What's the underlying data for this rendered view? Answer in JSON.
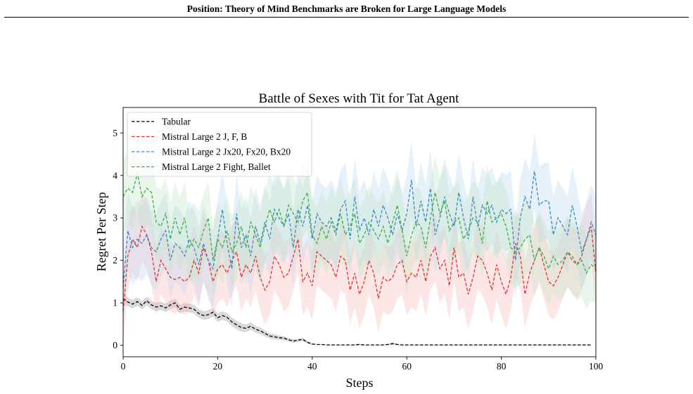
{
  "header": {
    "title": "Position: Theory of Mind Benchmarks are Broken for Large Language Models"
  },
  "chart_data": {
    "type": "line",
    "title": "Battle of Sexes with Tit for Tat Agent",
    "xlabel": "Steps",
    "ylabel": "Regret Per Step",
    "xlim": [
      0,
      100
    ],
    "ylim": [
      -0.27,
      5.6
    ],
    "xticks": [
      0,
      20,
      40,
      60,
      80,
      100
    ],
    "yticks": [
      0,
      1,
      2,
      3,
      4,
      5
    ],
    "grid": false,
    "legend_position": "top-left",
    "series": [
      {
        "name": "Tabular",
        "color": "#000000",
        "band_color": "#808080",
        "values": [
          1.1,
          1.02,
          0.97,
          1.03,
          0.94,
          1.05,
          0.95,
          0.9,
          0.93,
          0.88,
          0.95,
          1.0,
          0.85,
          0.9,
          0.88,
          0.85,
          0.75,
          0.7,
          0.72,
          0.78,
          0.65,
          0.7,
          0.66,
          0.55,
          0.48,
          0.42,
          0.4,
          0.45,
          0.38,
          0.34,
          0.28,
          0.22,
          0.2,
          0.18,
          0.17,
          0.13,
          0.1,
          0.12,
          0.14,
          0.07,
          0.03,
          0.02,
          0.02,
          0.01,
          0.01,
          0.01,
          0.01,
          0.01,
          0.01,
          0.01,
          0.02,
          0.01,
          0.01,
          0.01,
          0.01,
          0.01,
          0.02,
          0.04,
          0.02,
          0.01,
          0.01,
          0.01,
          0.01,
          0.01,
          0.01,
          0.01,
          0.01,
          0.01,
          0.01,
          0.01,
          0.01,
          0.01,
          0.01,
          0.01,
          0.01,
          0.01,
          0.01,
          0.01,
          0.01,
          0.01,
          0.01,
          0.01,
          0.01,
          0.01,
          0.01,
          0.01,
          0.01,
          0.01,
          0.01,
          0.01,
          0.01,
          0.01,
          0.01,
          0.01,
          0.01,
          0.01,
          0.01,
          0.01,
          0.01,
          0.01
        ],
        "band": [
          0.1,
          0.1,
          0.1,
          0.1,
          0.1,
          0.1,
          0.1,
          0.1,
          0.1,
          0.1,
          0.1,
          0.1,
          0.1,
          0.1,
          0.1,
          0.1,
          0.1,
          0.1,
          0.1,
          0.1,
          0.1,
          0.1,
          0.1,
          0.1,
          0.1,
          0.1,
          0.09,
          0.09,
          0.08,
          0.08,
          0.07,
          0.06,
          0.06,
          0.05,
          0.05,
          0.04,
          0.04,
          0.04,
          0.04,
          0.03,
          0.02,
          0.01,
          0.01,
          0.01,
          0.01,
          0.01,
          0.01,
          0.01,
          0.01,
          0.01,
          0.02,
          0.01,
          0.01,
          0.01,
          0.01,
          0.01,
          0.02,
          0.03,
          0.02,
          0.01,
          0.01,
          0.01,
          0.01,
          0.01,
          0.01,
          0.01,
          0.01,
          0.01,
          0.01,
          0.01,
          0.01,
          0.01,
          0.01,
          0.01,
          0.01,
          0.01,
          0.01,
          0.01,
          0.01,
          0.01,
          0.01,
          0.01,
          0.01,
          0.01,
          0.01,
          0.01,
          0.01,
          0.01,
          0.01,
          0.01,
          0.01,
          0.01,
          0.01,
          0.01,
          0.01,
          0.01,
          0.01,
          0.01,
          0.01,
          0.01
        ]
      },
      {
        "name": "Mistral Large 2 J, F, B",
        "color": "#e8312e",
        "band_color": "#f7b0b0",
        "band_width": 0.8,
        "values": [
          0.8,
          2.1,
          2.5,
          2.3,
          2.8,
          2.6,
          2.2,
          1.5,
          2.0,
          1.8,
          1.6,
          1.55,
          1.6,
          1.5,
          1.6,
          2.0,
          1.7,
          2.3,
          2.0,
          1.5,
          1.8,
          1.9,
          1.7,
          2.0,
          2.2,
          1.6,
          1.9,
          1.7,
          2.1,
          1.6,
          1.3,
          1.5,
          2.1,
          1.9,
          1.6,
          1.7,
          2.1,
          2.5,
          1.5,
          1.7,
          1.4,
          2.2,
          2.1,
          2.0,
          1.9,
          1.6,
          2.1,
          2.0,
          1.3,
          1.7,
          1.2,
          1.5,
          2.0,
          1.7,
          1.1,
          1.6,
          1.5,
          1.6,
          1.9,
          2.0,
          1.5,
          1.7,
          1.6,
          2.0,
          1.5,
          2.1,
          2.3,
          1.8,
          2.0,
          1.4,
          2.3,
          1.6,
          1.7,
          1.2,
          1.6,
          2.1,
          2.0,
          1.7,
          1.3,
          1.9,
          1.5,
          1.2,
          1.6,
          2.4,
          2.1,
          1.2,
          1.7,
          2.0,
          2.3,
          1.9,
          1.5,
          1.4,
          1.6,
          1.9,
          2.2,
          2.0,
          1.9,
          2.1,
          2.5,
          2.8,
          1.7
        ],
        "band": []
      },
      {
        "name": "Mistral Large 2 Jx20, Fx20, Bx20",
        "color": "#3b8bc6",
        "band_color": "#b3d4ee",
        "band_width": 0.9,
        "values": [
          1.35,
          2.7,
          2.3,
          2.5,
          2.4,
          2.6,
          2.3,
          2.2,
          2.5,
          2.7,
          2.0,
          2.4,
          2.3,
          2.1,
          2.5,
          2.3,
          1.9,
          2.4,
          2.0,
          1.8,
          2.5,
          3.2,
          2.4,
          1.8,
          3.1,
          2.3,
          2.6,
          2.1,
          2.8,
          2.4,
          2.9,
          2.5,
          3.2,
          3.0,
          2.8,
          3.1,
          2.3,
          3.2,
          2.8,
          3.3,
          2.5,
          3.1,
          2.9,
          2.8,
          3.0,
          2.7,
          3.2,
          3.4,
          2.5,
          3.5,
          2.7,
          3.0,
          2.6,
          3.2,
          2.8,
          3.3,
          3.0,
          2.6,
          3.1,
          2.7,
          3.1,
          3.9,
          2.8,
          3.4,
          2.9,
          3.7,
          2.6,
          3.0,
          3.5,
          3.1,
          2.8,
          3.6,
          3.0,
          2.5,
          3.5,
          2.8,
          3.3,
          3.1,
          3.3,
          2.9,
          3.2,
          3.1,
          3.2,
          2.0,
          3.0,
          3.5,
          3.2,
          4.1,
          3.3,
          3.4,
          3.4,
          2.6,
          3.0,
          2.8,
          2.6,
          3.3,
          2.8,
          2.2,
          2.5,
          2.9,
          2.6
        ],
        "band": []
      },
      {
        "name": "Mistral Large 2 Fight, Ballet",
        "color": "#3fae49",
        "band_color": "#bfe3c2",
        "band_width": 0.85,
        "values": [
          3.5,
          3.7,
          3.6,
          4.05,
          3.5,
          3.7,
          3.6,
          2.9,
          2.8,
          3.1,
          2.5,
          3.0,
          2.6,
          3.0,
          2.3,
          2.5,
          2.3,
          2.7,
          3.0,
          2.0,
          2.5,
          2.3,
          2.7,
          2.2,
          2.4,
          2.8,
          2.3,
          2.9,
          2.6,
          2.3,
          2.8,
          3.2,
          2.9,
          3.2,
          2.8,
          3.3,
          3.1,
          2.9,
          3.4,
          3.6,
          2.6,
          2.4,
          2.8,
          2.5,
          2.9,
          2.6,
          3.1,
          2.6,
          2.8,
          3.1,
          2.4,
          2.6,
          2.9,
          2.7,
          2.5,
          2.8,
          2.4,
          2.9,
          3.3,
          2.7,
          2.1,
          2.6,
          2.9,
          2.8,
          2.3,
          3.0,
          3.6,
          3.1,
          3.4,
          2.7,
          2.9,
          3.0,
          2.5,
          2.7,
          3.0,
          2.9,
          2.4,
          3.4,
          2.9,
          3.0,
          3.1,
          2.8,
          2.3,
          2.2,
          2.3,
          2.5,
          2.6,
          2.0,
          2.3,
          2.1,
          1.8,
          2.1,
          1.9,
          2.0,
          2.2,
          2.1,
          1.9,
          2.0,
          1.7,
          1.9,
          1.8
        ],
        "band": []
      }
    ]
  }
}
